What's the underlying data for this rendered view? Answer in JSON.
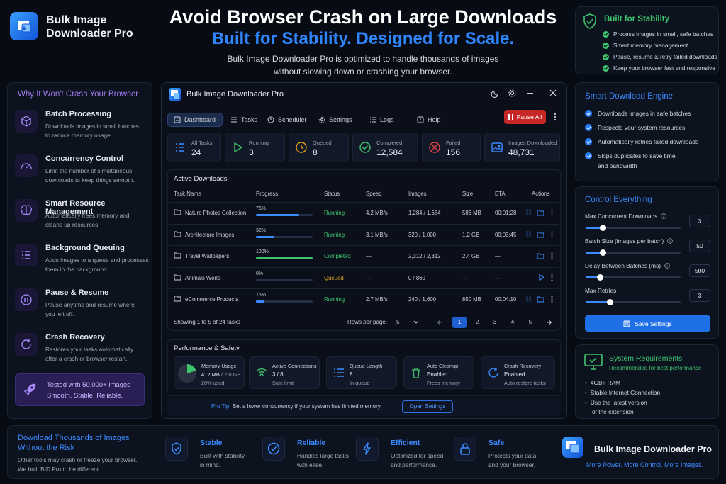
{
  "brand": {
    "name_line1": "Bulk Image",
    "name_line2": "Downloader Pro"
  },
  "hero": {
    "title": "Avoid Browser Crash on Large Downloads",
    "subtitle": "Built for Stability. Designed for Scale.",
    "desc_line1": "Bulk Image Downloader Pro is optimized to handle thousands of images",
    "desc_line2": "without slowing down or crashing your browser."
  },
  "stability_box": {
    "title": "Built for Stability",
    "items": [
      "Process images in small, safe batches",
      "Smart memory management",
      "Pause, resume & retry failed downloads",
      "Keep your browser fast and responsive"
    ]
  },
  "left_panel": {
    "title": "Why It Won't Crash Your Browser",
    "features": [
      {
        "title": "Batch Processing",
        "desc1": "Downloads images in small batches",
        "desc2": "to reduce memory usage.",
        "icon": "cube-icon"
      },
      {
        "title": "Concurrency Control",
        "desc1": "Limit the number of simultaneous",
        "desc2": "downloads to keep things smooth.",
        "icon": "gauge-icon"
      },
      {
        "title": "Smart Resource Management",
        "desc1": "Automatically frees memory and",
        "desc2": "cleans up resources.",
        "icon": "brain-icon"
      },
      {
        "title": "Background Queuing",
        "desc1": "Adds images to a queue and processes",
        "desc2": "them in the background.",
        "icon": "list-icon"
      },
      {
        "title": "Pause & Resume",
        "desc1": "Pause anytime and resume where",
        "desc2": "you left off.",
        "icon": "pause-icon"
      },
      {
        "title": "Crash Recovery",
        "desc1": "Restores your tasks automatically",
        "desc2": "after a crash or browser restart.",
        "icon": "refresh-icon"
      }
    ],
    "promo_line1": "Tested with 50,000+ images",
    "promo_line2": "Smooth. Stable. Reliable."
  },
  "app": {
    "window_title": "Bulk Image Downloader Pro",
    "nav": [
      "Dashboard",
      "Tasks",
      "Scheduler",
      "Settings",
      "Logs",
      "Help"
    ],
    "pause_all": "Pause All",
    "stats": [
      {
        "label": "All Tasks",
        "value": "24"
      },
      {
        "label": "Running",
        "value": "3"
      },
      {
        "label": "Queued",
        "value": "8"
      },
      {
        "label": "Completed",
        "value": "12,584"
      },
      {
        "label": "Failed",
        "value": "156"
      },
      {
        "label": "Images Downloaded",
        "value": "48,731"
      }
    ],
    "active_title": "Active Downloads",
    "columns": [
      "Task Name",
      "Progress",
      "Status",
      "Speed",
      "Images",
      "Size",
      "ETA",
      "Actions"
    ],
    "rows": [
      {
        "name": "Nature Photos Collection",
        "progress": "76%",
        "pct": 76,
        "status": "Running",
        "speed": "4.2 MB/s",
        "images": "1,284 / 1,684",
        "size": "586 MB",
        "eta": "00:01:28"
      },
      {
        "name": "Architecture Images",
        "progress": "32%",
        "pct": 32,
        "status": "Running",
        "speed": "3.1 MB/s",
        "images": "320 / 1,000",
        "size": "1.2 GB",
        "eta": "00:03:45"
      },
      {
        "name": "Travel Wallpapers",
        "progress": "100%",
        "pct": 100,
        "status": "Completed",
        "speed": "—",
        "images": "2,312 / 2,312",
        "size": "2.4 GB",
        "eta": "—"
      },
      {
        "name": "Animals World",
        "progress": "0%",
        "pct": 0,
        "status": "Queued",
        "speed": "—",
        "images": "0 / 860",
        "size": "—",
        "eta": "—"
      },
      {
        "name": "eCommerce Products",
        "progress": "15%",
        "pct": 15,
        "status": "Running",
        "speed": "2.7 MB/s",
        "images": "240 / 1,600",
        "size": "850 MB",
        "eta": "00:04:10"
      }
    ],
    "showing": "Showing 1 to 5 of 24 tasks",
    "rows_per_page_label": "Rows per page:",
    "rows_per_page": "5",
    "pages": [
      "1",
      "2",
      "3",
      "4",
      "5"
    ],
    "perf_title": "Performance & Safety",
    "memory": {
      "title": "Memory Usage",
      "value": "412 MB",
      "total": "/ 2.0 GB",
      "sub": "20% used",
      "pct": 20
    },
    "perf_cards": [
      {
        "title": "Active Connections",
        "value": "3 / 8",
        "sub": "Safe limit"
      },
      {
        "title": "Queue Length",
        "value": "8",
        "sub": "In queue"
      },
      {
        "title": "Auto Cleanup",
        "value": "Enabled",
        "sub": "Frees memory"
      },
      {
        "title": "Crash Recovery",
        "value": "Enabled",
        "sub": "Auto restore tasks"
      }
    ],
    "tip_label": "Pro Tip:",
    "tip_text": "Set a lower concurrency if your system has limited memory.",
    "tip_button": "Open Settings"
  },
  "engine": {
    "title": "Smart Download Engine",
    "items": [
      "Downloads images in safe batches",
      "Respects your system resources",
      "Automatically retries failed downloads",
      "Skips duplicates to save time"
    ],
    "item4_line2": "and bandwidth"
  },
  "control": {
    "title": "Control Everything",
    "settings": [
      {
        "label": "Max Concurrent Downloads",
        "value": "3",
        "fill": 0.18
      },
      {
        "label": "Batch Size (images per batch)",
        "value": "50",
        "fill": 0.18
      },
      {
        "label": "Delay Between Batches (ms)",
        "value": "500",
        "fill": 0.15
      },
      {
        "label": "Max Retries",
        "value": "3",
        "fill": 0.25
      }
    ],
    "save": "Save Settings"
  },
  "sysreq": {
    "title": "System Requirements",
    "subtitle": "Recommended for best performance",
    "items": [
      "4GB+ RAM",
      "Stable Internet Connection",
      "Use the latest version"
    ],
    "item3_line2": "of the extension"
  },
  "bottom": {
    "headline1": "Download Thousands of Images",
    "headline2": "Without the Risk",
    "desc1": "Other tools may crash or freeze your browser.",
    "desc2": "We built BID Pro to be different.",
    "features": [
      {
        "title": "Stable",
        "d1": "Built with stability",
        "d2": "in mind."
      },
      {
        "title": "Reliable",
        "d1": "Handles large tasks",
        "d2": "with ease."
      },
      {
        "title": "Efficient",
        "d1": "Optimized for speed",
        "d2": "and performance."
      },
      {
        "title": "Safe",
        "d1": "Protects your data",
        "d2": "and your browser."
      }
    ],
    "brand": "Bulk Image Downloader Pro",
    "tagline": "More Power. More Control. More Images."
  },
  "colors": {
    "accent": "#3b8bff",
    "green": "#3ec46d",
    "purple": "#9f7aea",
    "danger": "#d92d2d",
    "queued": "#e0a020"
  }
}
